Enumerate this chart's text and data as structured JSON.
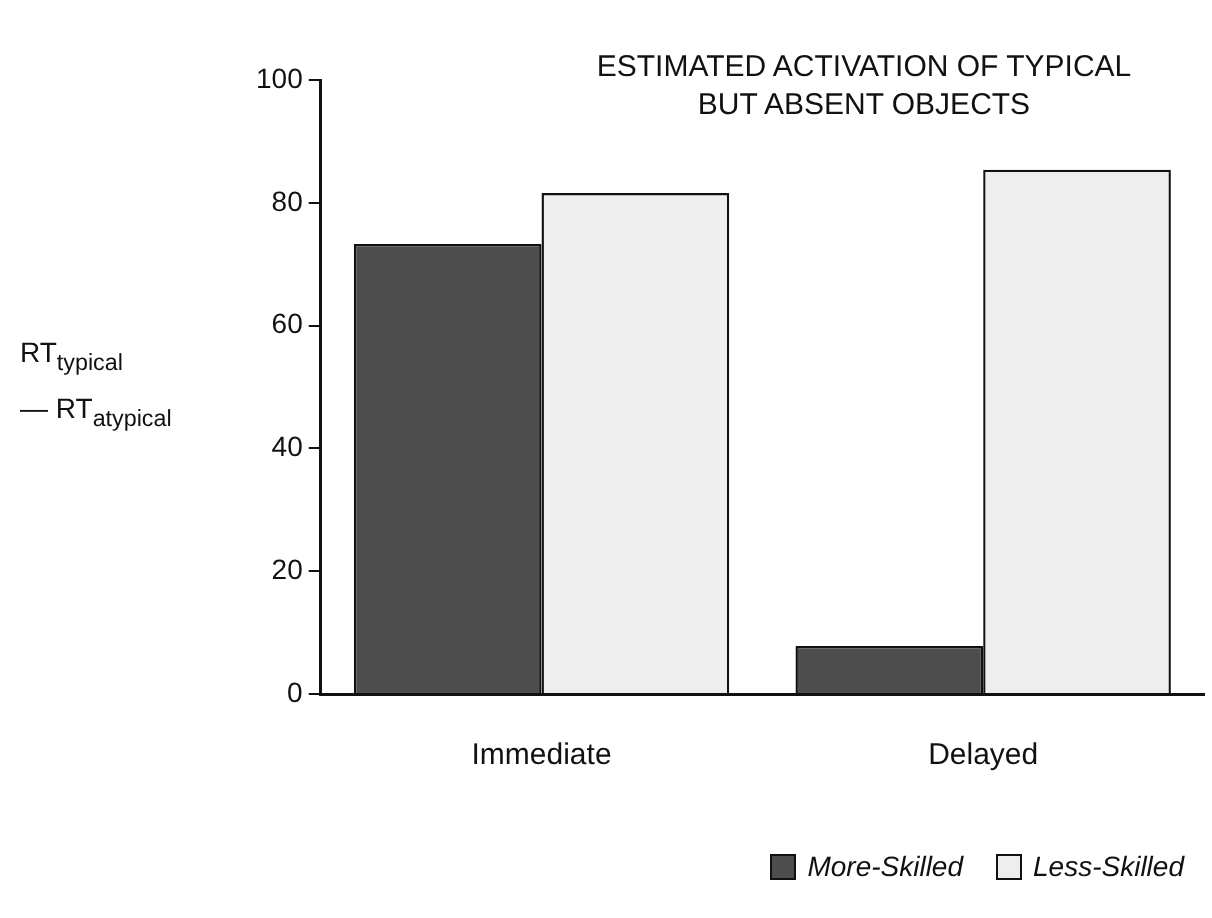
{
  "chart_data": {
    "type": "bar",
    "title": "ESTIMATED ACTIVATION OF TYPICAL BUT ABSENT OBJECTS",
    "ylabel": "RT$_{typical}$ — RT$_{atypical}$",
    "categories": [
      "Immediate",
      "Delayed"
    ],
    "series": [
      {
        "name": "More-Skilled",
        "color": "#4d4d4d",
        "values": [
          73.3,
          7.8
        ]
      },
      {
        "name": "Less-Skilled",
        "color": "#eeeeee",
        "values": [
          81.6,
          85.4
        ]
      }
    ],
    "ylim": [
      0,
      100
    ],
    "yticks": [
      0,
      20,
      40,
      60,
      80,
      100
    ],
    "grid": false,
    "legend": "bottom"
  }
}
